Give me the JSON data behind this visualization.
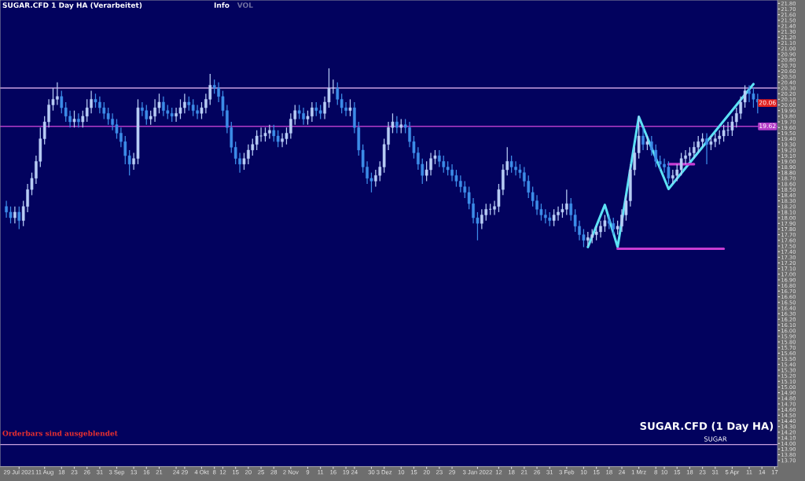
{
  "chart_data": {
    "type": "candlestick",
    "title": "SUGAR.CFD 1 Day HA (Verarbeitet)",
    "categories": [
      null,
      null,
      null,
      "29 Jul 2021",
      null,
      null,
      null,
      null,
      null,
      "11 Aug",
      null,
      null,
      null,
      "18",
      null,
      null,
      "23",
      null,
      null,
      "26",
      null,
      null,
      "31",
      null,
      null,
      null,
      "3 Sep",
      null,
      null,
      null,
      "13",
      null,
      null,
      "16",
      null,
      null,
      "21",
      null,
      null,
      null,
      "24",
      null,
      "29",
      null,
      null,
      null,
      "4 Okt",
      null,
      null,
      "8",
      null,
      "12",
      null,
      null,
      "15",
      null,
      null,
      "20",
      null,
      null,
      "25",
      null,
      null,
      "28",
      null,
      null,
      null,
      "2 Nov",
      null,
      null,
      null,
      "9",
      null,
      null,
      "11",
      null,
      null,
      "16",
      null,
      null,
      "19",
      null,
      "24",
      null,
      null,
      null,
      "30",
      null,
      null,
      "3 Dez",
      null,
      null,
      null,
      "10",
      null,
      null,
      "15",
      null,
      null,
      "20",
      null,
      null,
      "23",
      null,
      null,
      "29",
      null,
      null,
      null,
      null,
      null,
      "3 Jan 2022",
      null,
      null,
      null,
      null,
      "12",
      null,
      null,
      "18",
      null,
      null,
      "21",
      null,
      null,
      "26",
      null,
      null,
      "31",
      null,
      null,
      null,
      "3 Feb",
      null,
      null,
      null,
      "10",
      null,
      null,
      "15",
      null,
      null,
      "18",
      null,
      null,
      "24",
      null,
      null,
      null,
      "1 Mrz",
      null,
      null,
      null,
      "8",
      null,
      "10",
      null,
      null,
      "15",
      null,
      null,
      "18",
      null,
      null,
      "23",
      null,
      null,
      "31",
      null,
      null,
      null,
      "5 Apr",
      null,
      null,
      null,
      "11",
      null,
      null,
      "14",
      null,
      null,
      "17"
    ],
    "ohlc": [
      [
        18.2,
        18.3,
        18.0,
        18.1
      ],
      [
        18.1,
        18.2,
        17.9,
        18.0
      ],
      [
        18.0,
        18.2,
        17.9,
        18.1
      ],
      [
        18.1,
        18.2,
        17.8,
        17.95
      ],
      [
        17.95,
        18.3,
        17.85,
        18.2
      ],
      [
        18.2,
        18.6,
        18.1,
        18.5
      ],
      [
        18.5,
        18.8,
        18.4,
        18.7
      ],
      [
        18.7,
        19.1,
        18.6,
        19.0
      ],
      [
        19.0,
        19.6,
        18.9,
        19.4
      ],
      [
        19.4,
        19.8,
        19.3,
        19.7
      ],
      [
        19.7,
        20.1,
        19.6,
        20.0
      ],
      [
        20.0,
        20.3,
        19.9,
        20.1
      ],
      [
        20.1,
        20.4,
        20.0,
        20.15
      ],
      [
        20.15,
        20.25,
        19.85,
        19.95
      ],
      [
        19.95,
        20.05,
        19.7,
        19.8
      ],
      [
        19.8,
        19.9,
        19.6,
        19.7
      ],
      [
        19.7,
        19.9,
        19.6,
        19.75
      ],
      [
        19.75,
        19.85,
        19.6,
        19.7
      ],
      [
        19.7,
        19.9,
        19.6,
        19.8
      ],
      [
        19.8,
        20.1,
        19.7,
        19.95
      ],
      [
        19.95,
        20.25,
        19.85,
        20.1
      ],
      [
        20.1,
        20.2,
        19.95,
        20.05
      ],
      [
        20.05,
        20.15,
        19.85,
        19.95
      ],
      [
        19.95,
        20.05,
        19.75,
        19.85
      ],
      [
        19.85,
        19.95,
        19.65,
        19.75
      ],
      [
        19.75,
        19.85,
        19.55,
        19.65
      ],
      [
        19.65,
        19.75,
        19.4,
        19.5
      ],
      [
        19.5,
        19.6,
        19.25,
        19.35
      ],
      [
        19.35,
        19.45,
        18.95,
        19.1
      ],
      [
        19.1,
        19.2,
        18.75,
        18.95
      ],
      [
        18.95,
        19.15,
        18.85,
        19.05
      ],
      [
        19.05,
        20.1,
        18.95,
        19.95
      ],
      [
        19.95,
        20.05,
        19.8,
        19.9
      ],
      [
        19.9,
        20.0,
        19.65,
        19.75
      ],
      [
        19.75,
        19.9,
        19.65,
        19.8
      ],
      [
        19.8,
        20.1,
        19.7,
        19.95
      ],
      [
        19.95,
        20.2,
        19.85,
        20.05
      ],
      [
        20.05,
        20.15,
        19.8,
        19.9
      ],
      [
        19.9,
        20.0,
        19.75,
        19.85
      ],
      [
        19.85,
        19.95,
        19.7,
        19.8
      ],
      [
        19.8,
        19.95,
        19.7,
        19.85
      ],
      [
        19.85,
        20.1,
        19.75,
        19.95
      ],
      [
        19.95,
        20.2,
        19.85,
        20.05
      ],
      [
        20.05,
        20.15,
        19.9,
        20.0
      ],
      [
        20.0,
        20.1,
        19.8,
        19.9
      ],
      [
        19.9,
        20.0,
        19.75,
        19.85
      ],
      [
        19.85,
        20.05,
        19.75,
        19.95
      ],
      [
        19.95,
        20.2,
        19.85,
        20.1
      ],
      [
        20.1,
        20.55,
        20.0,
        20.35
      ],
      [
        20.35,
        20.45,
        20.2,
        20.3
      ],
      [
        20.3,
        20.4,
        20.05,
        20.15
      ],
      [
        20.15,
        20.25,
        19.8,
        19.9
      ],
      [
        19.9,
        20.0,
        19.5,
        19.6
      ],
      [
        19.6,
        19.7,
        19.15,
        19.25
      ],
      [
        19.25,
        19.35,
        18.95,
        19.05
      ],
      [
        19.05,
        19.15,
        18.8,
        18.95
      ],
      [
        18.95,
        19.15,
        18.85,
        19.05
      ],
      [
        19.05,
        19.3,
        18.95,
        19.2
      ],
      [
        19.2,
        19.4,
        19.1,
        19.3
      ],
      [
        19.3,
        19.55,
        19.2,
        19.45
      ],
      [
        19.45,
        19.6,
        19.35,
        19.45
      ],
      [
        19.45,
        19.6,
        19.35,
        19.5
      ],
      [
        19.5,
        19.65,
        19.4,
        19.55
      ],
      [
        19.55,
        19.65,
        19.35,
        19.45
      ],
      [
        19.45,
        19.55,
        19.25,
        19.35
      ],
      [
        19.35,
        19.5,
        19.25,
        19.4
      ],
      [
        19.4,
        19.6,
        19.3,
        19.5
      ],
      [
        19.5,
        19.85,
        19.4,
        19.75
      ],
      [
        19.75,
        20.0,
        19.65,
        19.9
      ],
      [
        19.9,
        20.0,
        19.75,
        19.85
      ],
      [
        19.85,
        19.95,
        19.65,
        19.75
      ],
      [
        19.75,
        19.9,
        19.65,
        19.8
      ],
      [
        19.8,
        20.05,
        19.7,
        19.95
      ],
      [
        19.95,
        20.05,
        19.8,
        19.9
      ],
      [
        19.9,
        20.0,
        19.75,
        19.85
      ],
      [
        19.85,
        20.15,
        19.75,
        20.05
      ],
      [
        20.05,
        20.65,
        19.95,
        20.3
      ],
      [
        20.3,
        20.45,
        20.2,
        20.3
      ],
      [
        20.3,
        20.4,
        20.0,
        20.1
      ],
      [
        20.1,
        20.2,
        19.85,
        19.95
      ],
      [
        19.95,
        20.05,
        19.8,
        19.9
      ],
      [
        19.9,
        20.1,
        19.8,
        19.95
      ],
      [
        19.95,
        20.05,
        19.5,
        19.6
      ],
      [
        19.6,
        19.7,
        19.1,
        19.2
      ],
      [
        19.2,
        19.3,
        18.8,
        18.9
      ],
      [
        18.9,
        19.0,
        18.6,
        18.7
      ],
      [
        18.7,
        18.8,
        18.45,
        18.65
      ],
      [
        18.65,
        18.85,
        18.55,
        18.75
      ],
      [
        18.75,
        19.0,
        18.65,
        18.9
      ],
      [
        18.9,
        19.4,
        18.8,
        19.3
      ],
      [
        19.3,
        19.7,
        19.2,
        19.6
      ],
      [
        19.6,
        19.85,
        19.5,
        19.7
      ],
      [
        19.7,
        19.8,
        19.5,
        19.6
      ],
      [
        19.6,
        19.75,
        19.5,
        19.65
      ],
      [
        19.65,
        19.75,
        19.5,
        19.6
      ],
      [
        19.6,
        19.7,
        19.25,
        19.35
      ],
      [
        19.35,
        19.45,
        19.05,
        19.15
      ],
      [
        19.15,
        19.25,
        18.85,
        18.95
      ],
      [
        18.95,
        19.05,
        18.6,
        18.75
      ],
      [
        18.75,
        19.0,
        18.65,
        18.85
      ],
      [
        18.85,
        19.15,
        18.75,
        19.05
      ],
      [
        19.05,
        19.2,
        18.95,
        19.1
      ],
      [
        19.1,
        19.2,
        18.9,
        19.0
      ],
      [
        19.0,
        19.1,
        18.8,
        18.9
      ],
      [
        18.9,
        19.0,
        18.75,
        18.85
      ],
      [
        18.85,
        18.95,
        18.65,
        18.75
      ],
      [
        18.75,
        18.85,
        18.55,
        18.65
      ],
      [
        18.65,
        18.75,
        18.45,
        18.55
      ],
      [
        18.55,
        18.65,
        18.35,
        18.45
      ],
      [
        18.45,
        18.55,
        18.15,
        18.25
      ],
      [
        18.25,
        18.35,
        17.9,
        18.0
      ],
      [
        18.0,
        18.1,
        17.6,
        17.9
      ],
      [
        17.9,
        18.15,
        17.8,
        18.05
      ],
      [
        18.05,
        18.25,
        17.95,
        18.15
      ],
      [
        18.15,
        18.25,
        18.05,
        18.15
      ],
      [
        18.15,
        18.3,
        18.05,
        18.2
      ],
      [
        18.2,
        18.6,
        18.1,
        18.5
      ],
      [
        18.5,
        18.95,
        18.4,
        18.85
      ],
      [
        18.85,
        19.25,
        18.75,
        19.0
      ],
      [
        19.0,
        19.1,
        18.8,
        18.9
      ],
      [
        18.9,
        19.0,
        18.75,
        18.85
      ],
      [
        18.85,
        18.95,
        18.7,
        18.8
      ],
      [
        18.8,
        18.9,
        18.55,
        18.65
      ],
      [
        18.65,
        18.75,
        18.35,
        18.45
      ],
      [
        18.45,
        18.55,
        18.2,
        18.3
      ],
      [
        18.3,
        18.4,
        18.05,
        18.15
      ],
      [
        18.15,
        18.25,
        17.95,
        18.05
      ],
      [
        18.05,
        18.15,
        17.9,
        18.0
      ],
      [
        18.0,
        18.1,
        17.85,
        17.95
      ],
      [
        17.95,
        18.15,
        17.85,
        18.05
      ],
      [
        18.05,
        18.2,
        17.95,
        18.1
      ],
      [
        18.1,
        18.25,
        18.0,
        18.15
      ],
      [
        18.15,
        18.5,
        18.05,
        18.25
      ],
      [
        18.25,
        18.35,
        17.95,
        18.05
      ],
      [
        18.05,
        18.15,
        17.75,
        17.85
      ],
      [
        17.85,
        17.95,
        17.6,
        17.7
      ],
      [
        17.7,
        17.8,
        17.48,
        17.6
      ],
      [
        17.6,
        17.75,
        17.5,
        17.65
      ],
      [
        17.65,
        17.8,
        17.55,
        17.7
      ],
      [
        17.7,
        17.85,
        17.6,
        17.75
      ],
      [
        17.75,
        17.95,
        17.65,
        17.85
      ],
      [
        17.85,
        18.05,
        17.75,
        17.95
      ],
      [
        17.95,
        18.05,
        17.8,
        17.9
      ],
      [
        17.9,
        18.0,
        17.7,
        17.8
      ],
      [
        17.8,
        17.95,
        17.7,
        17.85
      ],
      [
        17.85,
        18.15,
        17.75,
        18.05
      ],
      [
        18.05,
        18.4,
        17.95,
        18.3
      ],
      [
        18.3,
        18.95,
        18.2,
        18.85
      ],
      [
        18.85,
        19.25,
        18.75,
        19.15
      ],
      [
        19.15,
        19.8,
        19.05,
        19.45
      ],
      [
        19.45,
        19.6,
        19.2,
        19.3
      ],
      [
        19.3,
        19.45,
        19.2,
        19.35
      ],
      [
        19.35,
        19.45,
        19.1,
        19.2
      ],
      [
        19.2,
        19.3,
        18.9,
        19.0
      ],
      [
        19.0,
        19.1,
        18.85,
        18.95
      ],
      [
        18.95,
        19.05,
        18.8,
        18.9
      ],
      [
        18.9,
        19.0,
        18.6,
        18.7
      ],
      [
        18.7,
        18.85,
        18.6,
        18.75
      ],
      [
        18.75,
        18.95,
        18.65,
        18.85
      ],
      [
        18.85,
        19.15,
        18.75,
        19.05
      ],
      [
        19.05,
        19.2,
        18.95,
        19.1
      ],
      [
        19.1,
        19.25,
        19.0,
        19.15
      ],
      [
        19.15,
        19.35,
        19.05,
        19.25
      ],
      [
        19.25,
        19.45,
        19.15,
        19.35
      ],
      [
        19.35,
        19.5,
        19.25,
        19.4
      ],
      [
        19.4,
        19.5,
        18.95,
        19.3
      ],
      [
        19.3,
        19.45,
        19.2,
        19.35
      ],
      [
        19.35,
        19.5,
        19.25,
        19.4
      ],
      [
        19.4,
        19.55,
        19.3,
        19.45
      ],
      [
        19.45,
        19.65,
        19.35,
        19.55
      ],
      [
        19.55,
        19.7,
        19.45,
        19.55
      ],
      [
        19.55,
        19.8,
        19.45,
        19.7
      ],
      [
        19.7,
        19.95,
        19.6,
        19.85
      ],
      [
        19.85,
        20.15,
        19.75,
        20.05
      ],
      [
        20.05,
        20.35,
        19.95,
        20.25
      ],
      [
        20.25,
        20.35,
        20.05,
        20.2
      ],
      [
        20.2,
        20.3,
        19.95,
        20.1
      ],
      [
        20.1,
        20.2,
        19.85,
        20.05
      ],
      null,
      null,
      null,
      null
    ],
    "colors": [
      "#3d8de8",
      "#3d8de8",
      "#b8cdf5",
      "#3d8de8",
      "#b8cdf5",
      "#b8cdf5",
      "#b8cdf5",
      "#b8cdf5",
      "#b8cdf5",
      "#b8cdf5",
      "#b8cdf5",
      "#b8cdf5",
      "#b8cdf5",
      "#3d8de8",
      "#3d8de8",
      "#3d8de8",
      "#b8cdf5",
      "#3d8de8",
      "#b8cdf5",
      "#b8cdf5",
      "#b8cdf5",
      "#3d8de8",
      "#3d8de8",
      "#3d8de8",
      "#3d8de8",
      "#3d8de8",
      "#3d8de8",
      "#3d8de8",
      "#3d8de8",
      "#3d8de8",
      "#b8cdf5",
      "#b8cdf5",
      "#3d8de8",
      "#3d8de8",
      "#b8cdf5",
      "#b8cdf5",
      "#b8cdf5",
      "#3d8de8",
      "#3d8de8",
      "#3d8de8",
      "#b8cdf5",
      "#b8cdf5",
      "#b8cdf5",
      "#3d8de8",
      "#3d8de8",
      "#3d8de8",
      "#b8cdf5",
      "#b8cdf5",
      "#b8cdf5",
      "#3d8de8",
      "#3d8de8",
      "#3d8de8",
      "#3d8de8",
      "#3d8de8",
      "#3d8de8",
      "#3d8de8",
      "#b8cdf5",
      "#b8cdf5",
      "#b8cdf5",
      "#b8cdf5",
      "#b8cdf5",
      "#b8cdf5",
      "#b8cdf5",
      "#3d8de8",
      "#3d8de8",
      "#b8cdf5",
      "#b8cdf5",
      "#b8cdf5",
      "#b8cdf5",
      "#3d8de8",
      "#3d8de8",
      "#b8cdf5",
      "#b8cdf5",
      "#3d8de8",
      "#3d8de8",
      "#b8cdf5",
      "#b8cdf5",
      "#b8cdf5",
      "#3d8de8",
      "#3d8de8",
      "#3d8de8",
      "#b8cdf5",
      "#3d8de8",
      "#3d8de8",
      "#3d8de8",
      "#3d8de8",
      "#3d8de8",
      "#b8cdf5",
      "#b8cdf5",
      "#b8cdf5",
      "#b8cdf5",
      "#b8cdf5",
      "#3d8de8",
      "#b8cdf5",
      "#3d8de8",
      "#3d8de8",
      "#3d8de8",
      "#3d8de8",
      "#3d8de8",
      "#b8cdf5",
      "#b8cdf5",
      "#b8cdf5",
      "#3d8de8",
      "#3d8de8",
      "#3d8de8",
      "#3d8de8",
      "#3d8de8",
      "#3d8de8",
      "#3d8de8",
      "#3d8de8",
      "#3d8de8",
      "#3d8de8",
      "#b8cdf5",
      "#b8cdf5",
      "#b8cdf5",
      "#b8cdf5",
      "#b8cdf5",
      "#b8cdf5",
      "#b8cdf5",
      "#3d8de8",
      "#3d8de8",
      "#3d8de8",
      "#3d8de8",
      "#3d8de8",
      "#3d8de8",
      "#3d8de8",
      "#3d8de8",
      "#3d8de8",
      "#3d8de8",
      "#b8cdf5",
      "#b8cdf5",
      "#b8cdf5",
      "#b8cdf5",
      "#3d8de8",
      "#3d8de8",
      "#3d8de8",
      "#3d8de8",
      "#b8cdf5",
      "#b8cdf5",
      "#b8cdf5",
      "#b8cdf5",
      "#b8cdf5",
      "#3d8de8",
      "#3d8de8",
      "#b8cdf5",
      "#b8cdf5",
      "#b8cdf5",
      "#b8cdf5",
      "#b8cdf5",
      "#b8cdf5",
      "#3d8de8",
      "#b8cdf5",
      "#3d8de8",
      "#3d8de8",
      "#3d8de8",
      "#3d8de8",
      "#3d8de8",
      "#b8cdf5",
      "#b8cdf5",
      "#b8cdf5",
      "#b8cdf5",
      "#b8cdf5",
      "#b8cdf5",
      "#b8cdf5",
      "#b8cdf5",
      "#3d8de8",
      "#b8cdf5",
      "#b8cdf5",
      "#b8cdf5",
      "#b8cdf5",
      "#b8cdf5",
      "#b8cdf5",
      "#b8cdf5",
      "#b8cdf5",
      "#b8cdf5",
      "#3d8de8",
      "#3d8de8",
      "#3d8de8",
      null,
      null,
      null,
      null
    ],
    "series": [
      {
        "type": "line",
        "color": "#5ce1f5",
        "values": [
          null,
          null,
          null,
          null,
          null,
          null,
          null,
          null,
          null,
          null,
          null,
          null,
          null,
          null,
          null,
          null,
          null,
          null,
          null,
          null,
          null,
          null,
          null,
          null,
          null,
          null,
          null,
          null,
          null,
          null,
          null,
          null,
          null,
          null,
          null,
          null,
          null,
          null,
          null,
          null,
          null,
          null,
          null,
          null,
          null,
          null,
          null,
          null,
          null,
          null,
          null,
          null,
          null,
          null,
          null,
          null,
          null,
          null,
          null,
          null,
          null,
          null,
          null,
          null,
          null,
          null,
          null,
          null,
          null,
          null,
          null,
          null,
          null,
          null,
          null,
          null,
          null,
          null,
          null,
          null,
          null,
          null,
          null,
          null,
          null,
          null,
          null,
          null,
          null,
          null,
          null,
          null,
          null,
          null,
          null,
          null,
          null,
          null,
          null,
          null,
          null,
          null,
          null,
          null,
          null,
          null,
          null,
          null,
          null,
          null,
          null,
          null,
          null,
          null,
          null,
          null,
          null,
          null,
          null,
          null,
          null,
          null,
          null,
          null,
          null,
          null,
          null,
          null,
          null,
          null,
          null,
          null,
          null,
          null,
          null,
          null,
          null,
          17.48,
          null,
          null,
          null,
          18.23,
          null,
          null,
          17.48,
          null,
          null,
          null,
          null,
          19.79,
          null,
          null,
          null,
          null,
          null,
          null,
          18.51,
          null,
          null,
          null,
          null,
          null,
          null,
          null,
          null,
          null,
          null,
          null,
          null,
          null,
          null,
          null,
          null,
          null,
          null,
          null,
          20.37,
          null,
          null,
          null,
          null,
          null
        ]
      },
      {
        "type": "line",
        "color": "#c83cd2",
        "values": [
          null,
          null,
          null,
          null,
          null,
          null,
          null,
          null,
          null,
          null,
          null,
          null,
          null,
          null,
          null,
          null,
          null,
          null,
          null,
          null,
          null,
          null,
          null,
          null,
          null,
          null,
          null,
          null,
          null,
          null,
          null,
          null,
          null,
          null,
          null,
          null,
          null,
          null,
          null,
          null,
          null,
          null,
          null,
          null,
          null,
          null,
          null,
          null,
          null,
          null,
          null,
          null,
          null,
          null,
          null,
          null,
          null,
          null,
          null,
          null,
          null,
          null,
          null,
          null,
          null,
          null,
          null,
          null,
          null,
          null,
          null,
          null,
          null,
          null,
          null,
          null,
          null,
          null,
          null,
          null,
          null,
          null,
          null,
          null,
          null,
          null,
          null,
          null,
          null,
          null,
          null,
          null,
          null,
          null,
          null,
          null,
          null,
          null,
          null,
          null,
          null,
          null,
          null,
          null,
          null,
          null,
          null,
          null,
          null,
          null,
          null,
          null,
          null,
          null,
          null,
          null,
          null,
          null,
          null,
          null,
          null,
          null,
          null,
          null,
          null,
          null,
          null,
          null,
          null,
          null,
          null,
          null,
          null,
          null,
          null,
          null,
          null,
          null,
          null,
          null,
          null,
          null,
          null,
          null,
          17.45,
          null,
          null,
          null,
          null,
          null,
          null,
          null,
          null,
          null,
          null,
          null,
          null,
          null,
          null,
          null,
          null,
          null,
          null,
          null,
          null,
          null,
          null,
          null,
          null,
          17.45,
          null,
          null,
          null,
          null,
          null,
          null,
          null,
          null,
          null,
          null,
          null,
          null
        ]
      },
      {
        "type": "line",
        "color": "#c83cd2",
        "values": [
          null,
          null,
          null,
          null,
          null,
          null,
          null,
          null,
          null,
          null,
          null,
          null,
          null,
          null,
          null,
          null,
          null,
          null,
          null,
          null,
          null,
          null,
          null,
          null,
          null,
          null,
          null,
          null,
          null,
          null,
          null,
          null,
          null,
          null,
          null,
          null,
          null,
          null,
          null,
          null,
          null,
          null,
          null,
          null,
          null,
          null,
          null,
          null,
          null,
          null,
          null,
          null,
          null,
          null,
          null,
          null,
          null,
          null,
          null,
          null,
          null,
          null,
          null,
          null,
          null,
          null,
          null,
          null,
          null,
          null,
          null,
          null,
          null,
          null,
          null,
          null,
          null,
          null,
          null,
          null,
          null,
          null,
          null,
          null,
          null,
          null,
          null,
          null,
          null,
          null,
          null,
          null,
          null,
          null,
          null,
          null,
          null,
          null,
          null,
          null,
          null,
          null,
          null,
          null,
          null,
          null,
          null,
          null,
          null,
          null,
          null,
          null,
          null,
          null,
          null,
          null,
          null,
          null,
          null,
          null,
          null,
          null,
          null,
          null,
          null,
          null,
          null,
          null,
          null,
          null,
          null,
          null,
          null,
          null,
          null,
          null,
          null,
          null,
          null,
          null,
          null,
          null,
          null,
          null,
          null,
          null,
          null,
          null,
          null,
          null,
          null,
          null,
          null,
          null,
          null,
          null,
          18.95,
          null,
          null,
          null,
          null,
          null,
          18.95,
          null,
          null,
          null,
          null,
          null,
          null,
          null,
          null,
          null,
          null,
          null,
          null,
          null,
          null,
          null,
          null,
          null,
          null,
          null
        ]
      }
    ],
    "ylim": [
      13.59,
      21.86
    ],
    "yticks": [
      {
        "value": 13.7,
        "label": "13.70"
      },
      {
        "value": 13.8,
        "label": "13.80"
      },
      {
        "value": 13.9,
        "label": "13.90"
      },
      {
        "value": 14.0,
        "label": "14.00"
      },
      {
        "value": 14.1,
        "label": "14.10"
      },
      {
        "value": 14.2,
        "label": "14.20"
      },
      {
        "value": 14.3,
        "label": "14.30"
      },
      {
        "value": 14.4,
        "label": "14.40"
      },
      {
        "value": 14.5,
        "label": "14.50"
      },
      {
        "value": 14.6,
        "label": "14.60"
      },
      {
        "value": 14.7,
        "label": "14.70"
      },
      {
        "value": 14.8,
        "label": "14.80"
      },
      {
        "value": 14.9,
        "label": "14.90"
      },
      {
        "value": 15.0,
        "label": "15.00"
      },
      {
        "value": 15.1,
        "label": "15.10"
      },
      {
        "value": 15.2,
        "label": "15.20"
      },
      {
        "value": 15.3,
        "label": "15.30"
      },
      {
        "value": 15.4,
        "label": "15.40"
      },
      {
        "value": 15.5,
        "label": "15.50"
      },
      {
        "value": 15.6,
        "label": "15.60"
      },
      {
        "value": 15.7,
        "label": "15.70"
      },
      {
        "value": 15.8,
        "label": "15.80"
      },
      {
        "value": 15.9,
        "label": "15.90"
      },
      {
        "value": 16.0,
        "label": "16.00"
      },
      {
        "value": 16.1,
        "label": "16.10"
      },
      {
        "value": 16.2,
        "label": "16.20"
      },
      {
        "value": 16.3,
        "label": "16.30"
      },
      {
        "value": 16.4,
        "label": "16.40"
      },
      {
        "value": 16.5,
        "label": "16.50"
      },
      {
        "value": 16.6,
        "label": "16.60"
      },
      {
        "value": 16.7,
        "label": "16.70"
      },
      {
        "value": 16.8,
        "label": "16.80"
      },
      {
        "value": 16.9,
        "label": "16.90"
      },
      {
        "value": 17.0,
        "label": "17.00"
      },
      {
        "value": 17.1,
        "label": "17.10"
      },
      {
        "value": 17.2,
        "label": "17.20"
      },
      {
        "value": 17.3,
        "label": "17.30"
      },
      {
        "value": 17.4,
        "label": "17.40"
      },
      {
        "value": 17.5,
        "label": "17.50"
      },
      {
        "value": 17.6,
        "label": "17.60"
      },
      {
        "value": 17.7,
        "label": "17.70"
      },
      {
        "value": 17.8,
        "label": "17.80"
      },
      {
        "value": 17.9,
        "label": "17.90"
      },
      {
        "value": 18.0,
        "label": "18.00"
      },
      {
        "value": 18.1,
        "label": "18.10"
      },
      {
        "value": 18.2,
        "label": "18.20"
      },
      {
        "value": 18.3,
        "label": "18.30"
      },
      {
        "value": 18.4,
        "label": "18.40"
      },
      {
        "value": 18.5,
        "label": "18.50"
      },
      {
        "value": 18.6,
        "label": "18.60"
      },
      {
        "value": 18.7,
        "label": "18.70"
      },
      {
        "value": 18.8,
        "label": "18.80"
      },
      {
        "value": 18.9,
        "label": "18.90"
      },
      {
        "value": 19.0,
        "label": "19.00"
      },
      {
        "value": 19.1,
        "label": "19.10"
      },
      {
        "value": 19.2,
        "label": "19.20"
      },
      {
        "value": 19.3,
        "label": "19.30"
      },
      {
        "value": 19.4,
        "label": "19.40"
      },
      {
        "value": 19.5,
        "label": "19.50"
      },
      {
        "value": 19.6,
        "label": "19.60"
      },
      {
        "value": 19.7,
        "label": "19.70"
      },
      {
        "value": 19.8,
        "label": "19.80"
      },
      {
        "value": 19.9,
        "label": "19.90"
      },
      {
        "value": 20.0,
        "label": "20.00"
      },
      {
        "value": 20.1,
        "label": "20.10"
      },
      {
        "value": 20.2,
        "label": "20.20"
      },
      {
        "value": 20.3,
        "label": "20.30"
      },
      {
        "value": 20.4,
        "label": "20.40"
      },
      {
        "value": 20.5,
        "label": "20.50"
      },
      {
        "value": 20.6,
        "label": "20.60"
      },
      {
        "value": 20.7,
        "label": "20.70"
      },
      {
        "value": 20.8,
        "label": "20.80"
      },
      {
        "value": 20.9,
        "label": "20.90"
      },
      {
        "value": 21.0,
        "label": "21.00"
      },
      {
        "value": 21.1,
        "label": "21.10"
      },
      {
        "value": 21.2,
        "label": "21.20"
      },
      {
        "value": 21.3,
        "label": "21.30"
      },
      {
        "value": 21.4,
        "label": "21.40"
      },
      {
        "value": 21.5,
        "label": "21.50"
      },
      {
        "value": 21.6,
        "label": "21.60"
      },
      {
        "value": 21.7,
        "label": "21.70"
      },
      {
        "value": 21.8,
        "label": "21.80"
      }
    ],
    "ref_lines": [
      {
        "axis": "y",
        "value": 20.3,
        "color": "#c8a0e0"
      },
      {
        "axis": "y",
        "value": 19.62,
        "label": "19.62",
        "color": "#b43cc8"
      },
      {
        "axis": "y",
        "value": 13.98,
        "color": "#c8a0e0"
      }
    ],
    "annotations": [
      "Info",
      "VOL",
      "Orderbars sind ausgeblendet",
      "SUGAR.CFD (1 Day HA)",
      "SUGAR",
      "20.06"
    ],
    "grid": false,
    "legend": false
  }
}
